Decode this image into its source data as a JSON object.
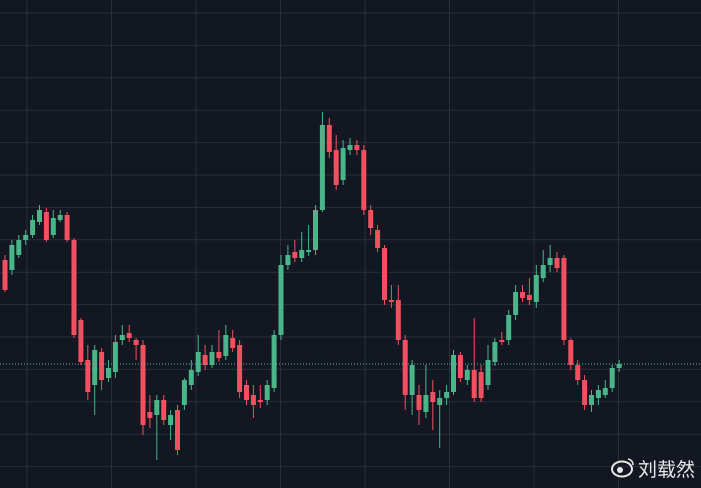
{
  "chart_data": {
    "type": "candlestick",
    "open": [
      228,
      218,
      233,
      248,
      253,
      266,
      276,
      253,
      268,
      273,
      248,
      168,
      128,
      103,
      136,
      110,
      116,
      148,
      155,
      148,
      143,
      76,
      73,
      88,
      63,
      78,
      83,
      103,
      116,
      133,
      123,
      136,
      132,
      150,
      143,
      103,
      93,
      88,
      88,
      100,
      153,
      223,
      236,
      230,
      236,
      238,
      278,
      363,
      338,
      308,
      338,
      343,
      338,
      278,
      258,
      240,
      188,
      188,
      148,
      93,
      93,
      76,
      96,
      83,
      90,
      96,
      133,
      108,
      118,
      116,
      103,
      126,
      148,
      148,
      173,
      196,
      193,
      186,
      210,
      223,
      230,
      230,
      148,
      123,
      108,
      83,
      90,
      93,
      100,
      120
    ],
    "high": [
      233,
      248,
      253,
      258,
      273,
      283,
      280,
      278,
      278,
      276,
      250,
      170,
      143,
      143,
      140,
      128,
      153,
      163,
      163,
      150,
      148,
      93,
      93,
      93,
      78,
      83,
      110,
      128,
      153,
      143,
      143,
      158,
      163,
      158,
      148,
      108,
      103,
      103,
      108,
      158,
      233,
      243,
      248,
      256,
      263,
      283,
      376,
      370,
      353,
      348,
      350,
      348,
      343,
      283,
      263,
      243,
      203,
      203,
      153,
      128,
      103,
      123,
      108,
      98,
      103,
      138,
      136,
      123,
      170,
      123,
      143,
      150,
      156,
      178,
      203,
      203,
      210,
      223,
      238,
      243,
      236,
      233,
      150,
      128,
      113,
      98,
      103,
      108,
      123,
      128
    ],
    "low": [
      196,
      213,
      230,
      243,
      250,
      263,
      246,
      250,
      266,
      246,
      150,
      123,
      88,
      73,
      98,
      106,
      110,
      143,
      146,
      128,
      53,
      60,
      28,
      63,
      48,
      33,
      78,
      98,
      112,
      118,
      120,
      126,
      128,
      136,
      90,
      83,
      70,
      80,
      83,
      96,
      148,
      218,
      226,
      226,
      232,
      233,
      276,
      330,
      298,
      303,
      333,
      333,
      273,
      253,
      236,
      183,
      180,
      143,
      78,
      73,
      63,
      70,
      58,
      40,
      83,
      93,
      106,
      103,
      86,
      86,
      98,
      122,
      143,
      143,
      168,
      186,
      183,
      180,
      206,
      216,
      216,
      143,
      118,
      103,
      78,
      76,
      83,
      90,
      96,
      116
    ],
    "close": [
      198,
      243,
      248,
      253,
      268,
      278,
      248,
      270,
      273,
      248,
      153,
      126,
      96,
      138,
      108,
      120,
      146,
      153,
      150,
      143,
      63,
      70,
      88,
      68,
      73,
      38,
      108,
      118,
      136,
      123,
      136,
      130,
      153,
      140,
      96,
      88,
      83,
      86,
      103,
      153,
      223,
      233,
      230,
      238,
      238,
      278,
      363,
      336,
      303,
      340,
      343,
      338,
      278,
      260,
      240,
      188,
      186,
      148,
      93,
      123,
      78,
      93,
      86,
      90,
      96,
      133,
      110,
      118,
      90,
      90,
      128,
      146,
      146,
      173,
      196,
      190,
      188,
      213,
      223,
      230,
      220,
      148,
      123,
      108,
      83,
      93,
      98,
      100,
      120,
      124
    ],
    "ylim": [
      0,
      488
    ],
    "up_color": "#4bb58a",
    "down_color": "#f0505f",
    "background": "#131722",
    "grid_color": "#2a2e39",
    "price_line_color": "#5fb3a8",
    "watermark": "刘载然"
  }
}
